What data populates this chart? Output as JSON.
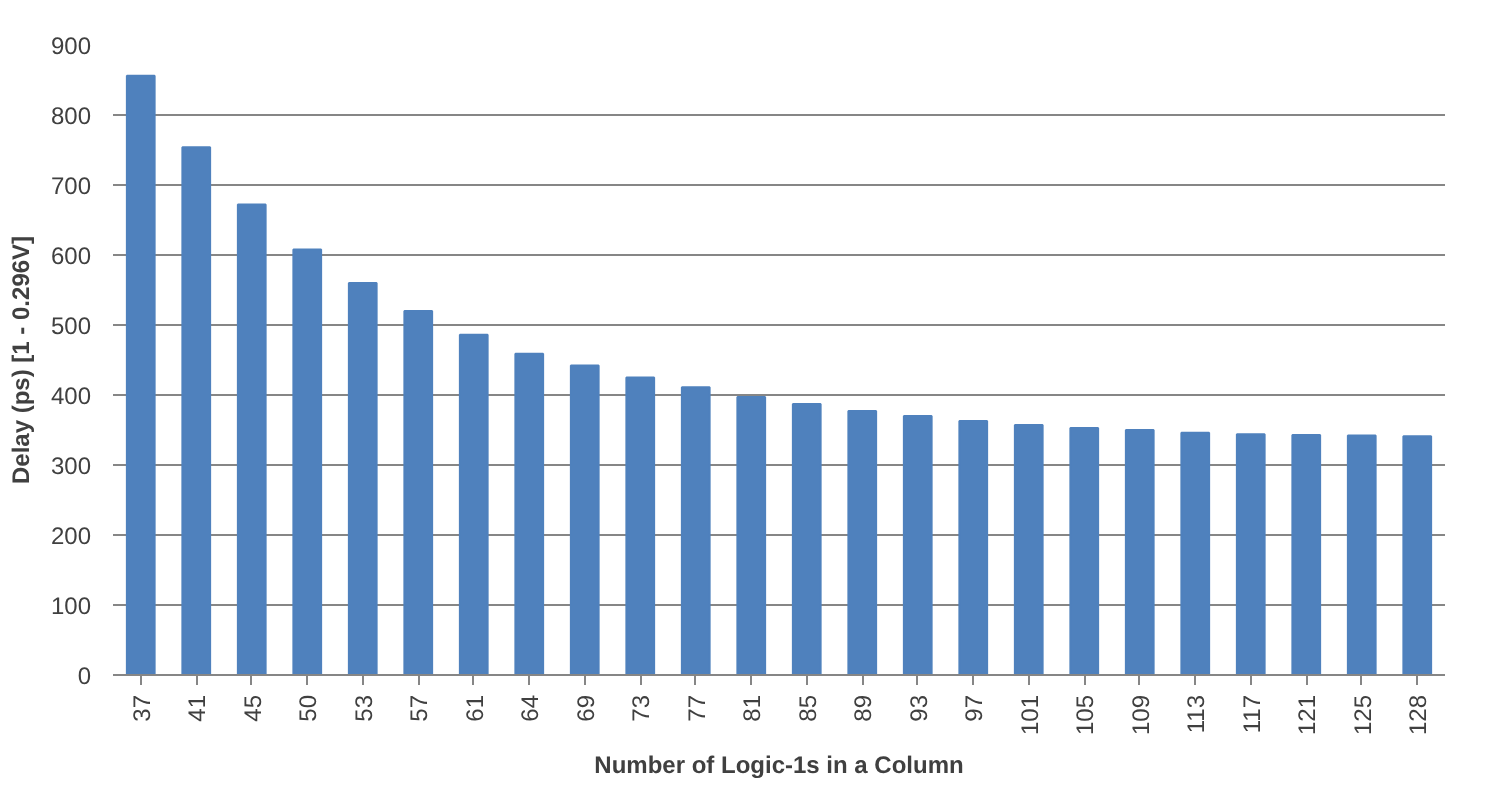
{
  "chart_data": {
    "type": "bar",
    "xlabel": "Number of Logic-1s in a Column",
    "ylabel": "Delay (ps) [1 - 0.296V]",
    "categories": [
      "37",
      "41",
      "45",
      "50",
      "53",
      "57",
      "61",
      "64",
      "69",
      "73",
      "77",
      "81",
      "85",
      "89",
      "93",
      "97",
      "101",
      "105",
      "109",
      "113",
      "117",
      "121",
      "125",
      "128"
    ],
    "values": [
      856,
      754,
      672,
      608,
      560,
      520,
      486,
      459,
      442,
      425,
      411,
      397,
      387,
      377,
      370,
      363,
      357,
      353,
      350,
      346,
      344,
      343,
      342,
      341
    ],
    "color": "#4f81bd",
    "ylim": [
      0,
      900
    ],
    "yticks": [
      0,
      100,
      200,
      300,
      400,
      500,
      600,
      700,
      800,
      900
    ],
    "grid": "y"
  }
}
